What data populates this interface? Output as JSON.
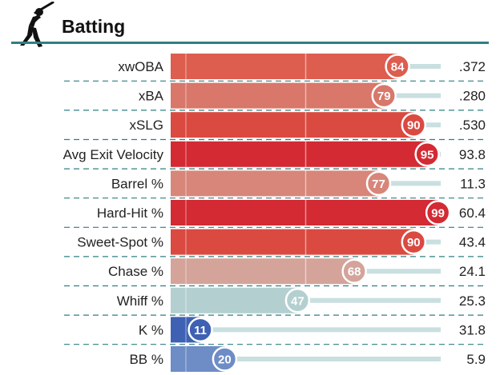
{
  "title": "Batting",
  "icon": "batter-silhouette-icon",
  "chart_data": {
    "type": "bar",
    "orientation": "horizontal",
    "scale": [
      0,
      100
    ],
    "gridlines_at": [
      50
    ],
    "categories": [
      "xwOBA",
      "xBA",
      "xSLG",
      "Avg Exit Velocity",
      "Barrel %",
      "Hard-Hit %",
      "Sweet-Spot %",
      "Chase %",
      "Whiff %",
      "K %",
      "BB %"
    ],
    "percentiles": [
      84,
      79,
      90,
      95,
      77,
      99,
      90,
      68,
      47,
      11,
      20
    ],
    "values": [
      ".372",
      ".280",
      ".530",
      "93.8",
      "11.3",
      "60.4",
      "43.4",
      "24.1",
      "25.3",
      "31.8",
      "5.9"
    ],
    "colors": [
      "#dd5d4f",
      "#d8776a",
      "#da4a41",
      "#d42a33",
      "#d8867a",
      "#d32a33",
      "#da4a41",
      "#d4a39a",
      "#b4cfd0",
      "#3e61b3",
      "#6e8cc6"
    ],
    "track_color": "#c9dfe0",
    "divider_color": "#2f7f82"
  }
}
